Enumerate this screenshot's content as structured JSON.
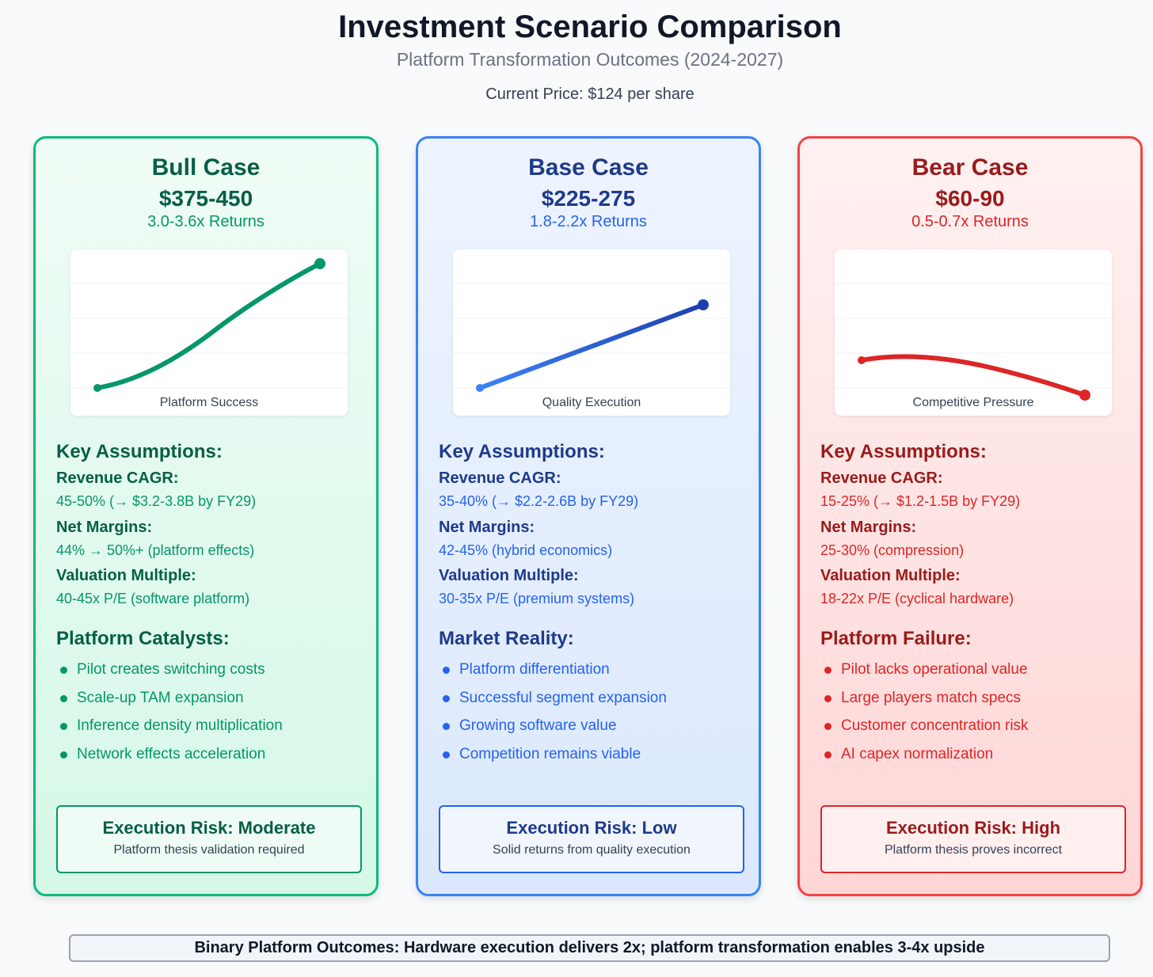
{
  "header": {
    "title": "Investment Scenario Comparison",
    "subtitle": "Platform Transformation Outcomes (2024-2027)",
    "current_price": "Current Price: $124 per share"
  },
  "cases": {
    "bull": {
      "name": "Bull Case",
      "range": "$375-450",
      "returns": "3.0-3.6x Returns",
      "chart_label": "Platform Success",
      "assumptions_heading": "Key Assumptions:",
      "revenue_label": "Revenue CAGR:",
      "revenue_value": "45-50% (→ $3.2-3.8B by FY29)",
      "margins_label": "Net Margins:",
      "margins_value": "44% → 50%+ (platform effects)",
      "multiple_label": "Valuation Multiple:",
      "multiple_value": "40-45x P/E (software platform)",
      "list_heading": "Platform Catalysts:",
      "list": [
        "Pilot creates switching costs",
        "Scale-up TAM expansion",
        "Inference density multiplication",
        "Network effects acceleration"
      ],
      "risk_title": "Execution Risk: Moderate",
      "risk_sub": "Platform thesis validation required",
      "colors": {
        "dark": "#065f46",
        "mid": "#059669",
        "line": "#059669"
      }
    },
    "base": {
      "name": "Base Case",
      "range": "$225-275",
      "returns": "1.8-2.2x Returns",
      "chart_label": "Quality Execution",
      "assumptions_heading": "Key Assumptions:",
      "revenue_label": "Revenue CAGR:",
      "revenue_value": "35-40% (→ $2.2-2.6B by FY29)",
      "margins_label": "Net Margins:",
      "margins_value": "42-45% (hybrid economics)",
      "multiple_label": "Valuation Multiple:",
      "multiple_value": "30-35x P/E (premium systems)",
      "list_heading": "Market Reality:",
      "list": [
        "Platform differentiation",
        "Successful segment expansion",
        "Growing software value",
        "Competition remains viable"
      ],
      "risk_title": "Execution Risk: Low",
      "risk_sub": "Solid returns from quality execution",
      "colors": {
        "dark": "#1e3a8a",
        "mid": "#2563eb",
        "line": "#1e40af"
      }
    },
    "bear": {
      "name": "Bear Case",
      "range": "$60-90",
      "returns": "0.5-0.7x Returns",
      "chart_label": "Competitive Pressure",
      "assumptions_heading": "Key Assumptions:",
      "revenue_label": "Revenue CAGR:",
      "revenue_value": "15-25% (→ $1.2-1.5B by FY29)",
      "margins_label": "Net Margins:",
      "margins_value": "25-30% (compression)",
      "multiple_label": "Valuation Multiple:",
      "multiple_value": "18-22x P/E (cyclical hardware)",
      "list_heading": "Platform Failure:",
      "list": [
        "Pilot lacks operational value",
        "Large players match specs",
        "Customer concentration risk",
        "AI capex normalization"
      ],
      "risk_title": "Execution Risk: High",
      "risk_sub": "Platform thesis proves incorrect",
      "colors": {
        "dark": "#991b1b",
        "mid": "#dc2626",
        "line": "#dc2626"
      }
    }
  },
  "footer": {
    "text": "Binary Platform Outcomes: Hardware execution delivers 2x; platform transformation enables 3-4x upside"
  }
}
